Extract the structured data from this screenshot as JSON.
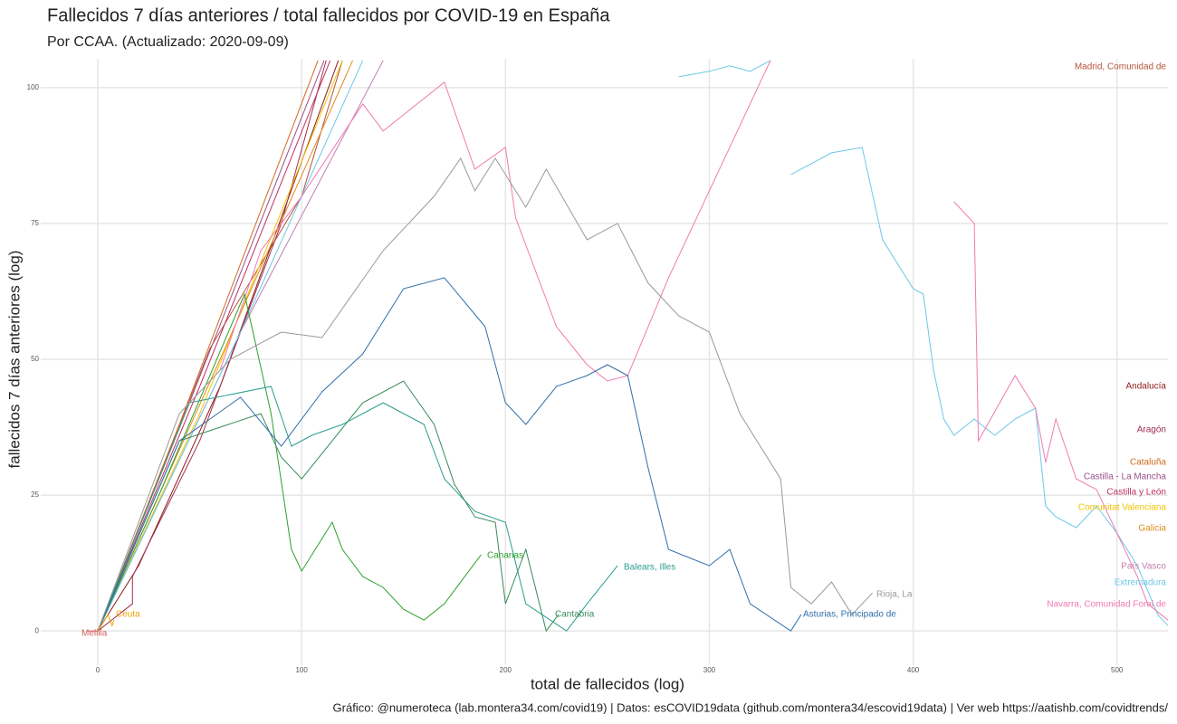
{
  "chart_data": {
    "type": "line",
    "title": "Fallecidos 7 días anteriores / total fallecidos por COVID-19 en España",
    "subtitle": "Por CCAA. (Actualizado: 2020-09-09)",
    "x_label": "total de fallecidos (log)",
    "y_label": "fallecidos 7 días anteriores (log)",
    "caption": "Gráfico: @numeroteca (lab.montera34.com/covid19) | Datos: esCOVID19data (github.com/montera34/escovid19data) | Ver web https://aatishb.com/covidtrends/",
    "xlim": [
      -28,
      525
    ],
    "ylim": [
      -6.3,
      105.3
    ],
    "xticks": [
      0,
      100,
      200,
      300,
      400,
      500
    ],
    "yticks": [
      0,
      25,
      50,
      75,
      100
    ],
    "grid": true,
    "series": [
      {
        "name": "Madrid, Comunidad de",
        "color": "#b5543a",
        "x": [
          0,
          55,
          100,
          120
        ],
        "values": [
          0,
          52,
          80,
          105
        ]
      },
      {
        "name": "Andalucía",
        "color": "#8b1a1a",
        "x": [
          0,
          20,
          60,
          118
        ],
        "values": [
          0,
          12,
          45,
          105
        ]
      },
      {
        "name": "Aragón",
        "color": "#a0304f",
        "x": [
          0,
          17,
          17,
          50,
          90,
          112
        ],
        "values": [
          0,
          5,
          10,
          35,
          75,
          105
        ]
      },
      {
        "name": "Cataluña",
        "color": "#d2691e",
        "x": [
          0,
          40,
          108
        ],
        "values": [
          0,
          38,
          105
        ]
      },
      {
        "name": "Castilla - La Mancha",
        "color": "#9b4f8a",
        "x": [
          0,
          45,
          111
        ],
        "values": [
          0,
          42,
          105
        ]
      },
      {
        "name": "Castilla y León",
        "color": "#c03060",
        "x": [
          0,
          50,
          114
        ],
        "values": [
          0,
          45,
          105
        ]
      },
      {
        "name": "Comunitat Valenciana",
        "color": "#f2c500",
        "x": [
          0,
          50,
          120
        ],
        "values": [
          0,
          40,
          105
        ]
      },
      {
        "name": "Galicia",
        "color": "#e08a1e",
        "x": [
          0,
          60,
          125
        ],
        "values": [
          0,
          50,
          105
        ]
      },
      {
        "name": "País Vasco",
        "color": "#c080b0",
        "x": [
          0,
          70,
          140
        ],
        "values": [
          0,
          55,
          105
        ]
      },
      {
        "name": "Extremadura",
        "color": "#6cc8e8",
        "x": [
          0,
          70,
          130,
          280,
          285,
          300,
          310,
          320,
          330,
          335,
          340,
          360,
          375,
          385,
          400,
          405,
          410,
          415,
          420,
          430,
          440,
          450,
          460,
          465,
          470,
          480,
          490,
          500,
          510,
          520,
          525
        ],
        "values": [
          0,
          55,
          105,
          null,
          102,
          103,
          104,
          103,
          105,
          null,
          84,
          88,
          89,
          72,
          63,
          62,
          48,
          39,
          36,
          39,
          36,
          39,
          41,
          23,
          21,
          19,
          23,
          18,
          12,
          3,
          1
        ]
      },
      {
        "name": "Navarra, Comunidad Foral de",
        "color": "#f07ab0",
        "x": [
          60,
          80,
          100,
          130,
          140,
          170,
          185,
          200,
          205,
          225,
          240,
          250,
          260,
          280,
          330,
          415,
          420,
          430,
          432,
          450,
          460,
          465,
          470,
          480,
          490,
          500,
          510,
          515,
          525
        ],
        "values": [
          48,
          70,
          80,
          97,
          92,
          101,
          85,
          89,
          76,
          56,
          49,
          46,
          47,
          65,
          105,
          null,
          79,
          75,
          35,
          47,
          41,
          31,
          39,
          28,
          26,
          18,
          10,
          5,
          2
        ]
      },
      {
        "name": "Canarias",
        "color": "#2ca02c",
        "x": [
          0,
          30,
          72,
          85,
          95,
          100,
          115,
          120,
          130,
          140,
          150,
          160,
          170,
          180,
          188
        ],
        "values": [
          0,
          25,
          62,
          40,
          15,
          11,
          20,
          15,
          10,
          8,
          4,
          2,
          5,
          10,
          14
        ]
      },
      {
        "name": "Balears, Illes",
        "color": "#2a9d8f",
        "x": [
          0,
          45,
          85,
          95,
          105,
          120,
          140,
          160,
          170,
          185,
          200,
          210,
          230,
          240,
          255
        ],
        "values": [
          0,
          42,
          45,
          34,
          36,
          38,
          42,
          38,
          28,
          22,
          20,
          5,
          0,
          5,
          12
        ]
      },
      {
        "name": "Cantabria",
        "color": "#3a8a5a",
        "x": [
          0,
          40,
          80,
          90,
          100,
          130,
          150,
          165,
          175,
          185,
          195,
          200,
          210,
          220,
          226
        ],
        "values": [
          0,
          35,
          40,
          32,
          28,
          42,
          46,
          38,
          27,
          21,
          20,
          5,
          15,
          0,
          3
        ]
      },
      {
        "name": "Asturias, Principado de",
        "color": "#2f6fa8",
        "x": [
          0,
          40,
          70,
          90,
          110,
          130,
          150,
          170,
          190,
          200,
          210,
          225,
          240,
          250,
          260,
          270,
          280,
          300,
          310,
          320,
          340,
          345
        ],
        "values": [
          0,
          35,
          43,
          34,
          44,
          51,
          63,
          65,
          56,
          42,
          38,
          45,
          47,
          49,
          47,
          30,
          15,
          12,
          15,
          5,
          0,
          3
        ]
      },
      {
        "name": "Rioja, La",
        "color": "#999999",
        "x": [
          0,
          40,
          65,
          90,
          110,
          140,
          165,
          178,
          185,
          195,
          210,
          220,
          240,
          255,
          270,
          285,
          300,
          315,
          325,
          335,
          340,
          350,
          360,
          370,
          380
        ],
        "values": [
          0,
          40,
          50,
          55,
          54,
          70,
          80,
          87,
          81,
          87,
          78,
          85,
          72,
          75,
          64,
          58,
          55,
          40,
          34,
          28,
          8,
          5,
          9,
          3,
          7
        ]
      },
      {
        "name": "Ceuta",
        "color": "#f0a000",
        "x": [
          0,
          5,
          7,
          8
        ],
        "values": [
          0,
          3,
          1,
          2
        ]
      },
      {
        "name": "Melilla",
        "color": "#d06060",
        "x": [
          -5,
          0
        ],
        "values": [
          0,
          0
        ]
      }
    ]
  }
}
